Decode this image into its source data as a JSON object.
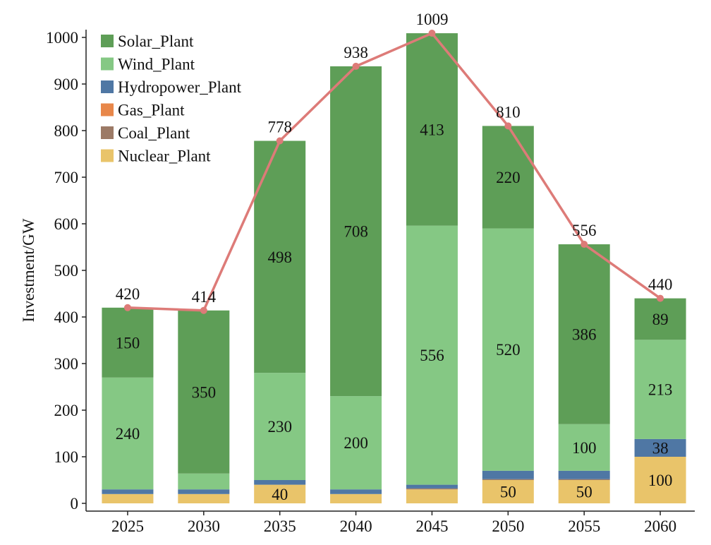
{
  "chart_data": {
    "type": "bar",
    "stacked": true,
    "categories": [
      "2025",
      "2030",
      "2035",
      "2040",
      "2045",
      "2050",
      "2055",
      "2060"
    ],
    "ylabel": "Investment/GW",
    "xlabel": "",
    "ylim": [
      0,
      1010
    ],
    "yticks": [
      0,
      100,
      200,
      300,
      400,
      500,
      600,
      700,
      800,
      900,
      1000
    ],
    "grid": false,
    "legend_position": "top-left",
    "series": [
      {
        "name": "Nuclear_Plant",
        "color": "#e9c46a",
        "values": [
          20,
          20,
          40,
          20,
          30,
          50,
          50,
          100
        ],
        "labels": [
          "",
          "",
          "40",
          "",
          "",
          "50",
          "50",
          "100"
        ]
      },
      {
        "name": "Coal_Plant",
        "color": "#9c7a66",
        "values": [
          0,
          0,
          0,
          0,
          2,
          2,
          2,
          0
        ],
        "labels": [
          "",
          "",
          "",
          "",
          "",
          "",
          "",
          ""
        ]
      },
      {
        "name": "Gas_Plant",
        "color": "#e8874a",
        "values": [
          0,
          0,
          0,
          0,
          0,
          0,
          0,
          0
        ],
        "labels": [
          "",
          "",
          "",
          "",
          "",
          "",
          "",
          ""
        ]
      },
      {
        "name": "Hydropower_Plant",
        "color": "#4f77a4",
        "values": [
          10,
          10,
          10,
          10,
          8,
          18,
          18,
          38
        ],
        "labels": [
          "",
          "",
          "",
          "",
          "",
          "",
          "",
          "38"
        ]
      },
      {
        "name": "Wind_Plant",
        "color": "#85c884",
        "values": [
          240,
          34,
          230,
          200,
          556,
          520,
          100,
          213
        ],
        "labels": [
          "240",
          "",
          "230",
          "200",
          "556",
          "520",
          "100",
          "213"
        ]
      },
      {
        "name": "Solar_Plant",
        "color": "#5e9e57",
        "values": [
          150,
          350,
          498,
          708,
          413,
          220,
          386,
          89
        ],
        "labels": [
          "150",
          "350",
          "498",
          "708",
          "413",
          "220",
          "386",
          "89"
        ]
      }
    ],
    "line": {
      "color": "#dd7b78",
      "values": [
        420,
        414,
        778,
        938,
        1009,
        810,
        556,
        440
      ],
      "labels": [
        "420",
        "414",
        "778",
        "938",
        "1009",
        "810",
        "556",
        "440"
      ]
    },
    "legend_order": [
      "Solar_Plant",
      "Wind_Plant",
      "Hydropower_Plant",
      "Gas_Plant",
      "Coal_Plant",
      "Nuclear_Plant"
    ]
  }
}
